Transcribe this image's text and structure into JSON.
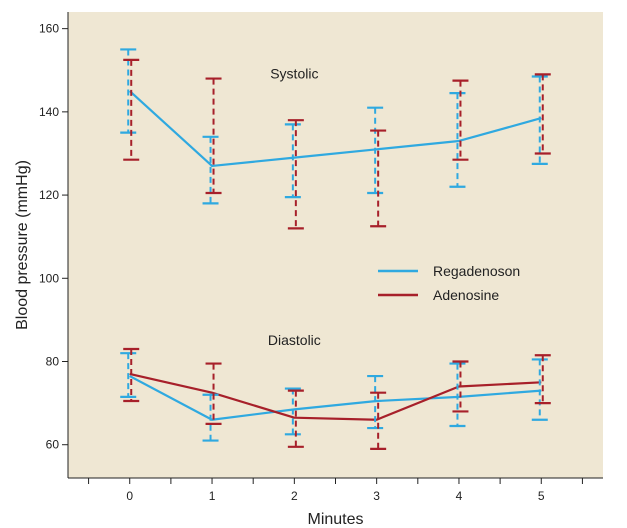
{
  "chart_data": {
    "type": "line",
    "title": "",
    "xlabel": "Minutes",
    "ylabel": "Blood pressure (mmHg)",
    "x": [
      0,
      1,
      2,
      3,
      4,
      5
    ],
    "x_ticks": [
      "0",
      "1",
      "2",
      "3",
      "4",
      "5"
    ],
    "xlim": [
      -0.75,
      5.75
    ],
    "ylim": [
      52,
      164
    ],
    "y_ticks": [
      "60",
      "80",
      "100",
      "120",
      "140",
      "160"
    ],
    "grid": false,
    "background": "#efe7d3",
    "legend_position": "middle-right",
    "legend": [
      {
        "name": "Regadenoson",
        "color": "#2fa9e0"
      },
      {
        "name": "Adenosine",
        "color": "#a7202a"
      }
    ],
    "annotations": [
      {
        "text": "Systolic",
        "x": 2,
        "y": 148
      },
      {
        "text": "Diastolic",
        "x": 2,
        "y": 84
      }
    ],
    "series": [
      {
        "name": "Regadenoson",
        "group": "Systolic",
        "color": "#2fa9e0",
        "values": [
          145,
          127,
          129,
          131,
          133,
          138.5
        ],
        "err_low": [
          135,
          118,
          119.5,
          120.5,
          122,
          127.5
        ],
        "err_high": [
          155,
          134,
          137,
          141,
          144.5,
          148.5
        ]
      },
      {
        "name": "Adenosine",
        "group": "Systolic",
        "color": "#a7202a",
        "values": [
          145,
          127,
          129,
          131,
          133,
          138.5
        ],
        "err_low": [
          128.5,
          120.5,
          112,
          112.5,
          128.5,
          130
        ],
        "err_high": [
          152.5,
          148,
          138,
          135.5,
          147.5,
          149
        ]
      },
      {
        "name": "Regadenoson",
        "group": "Diastolic",
        "color": "#2fa9e0",
        "values": [
          76.5,
          66,
          68.5,
          70.5,
          71.5,
          73
        ],
        "err_low": [
          71.5,
          61,
          62.5,
          64,
          64.5,
          66
        ],
        "err_high": [
          82,
          72,
          73.5,
          76.5,
          79.5,
          80.5
        ]
      },
      {
        "name": "Adenosine",
        "group": "Diastolic",
        "color": "#a7202a",
        "values": [
          77,
          72.5,
          66.5,
          66,
          74,
          75
        ],
        "err_low": [
          70.5,
          65,
          59.5,
          59,
          68,
          70
        ],
        "err_high": [
          83,
          79.5,
          73,
          72.5,
          80,
          81.5
        ]
      }
    ]
  }
}
